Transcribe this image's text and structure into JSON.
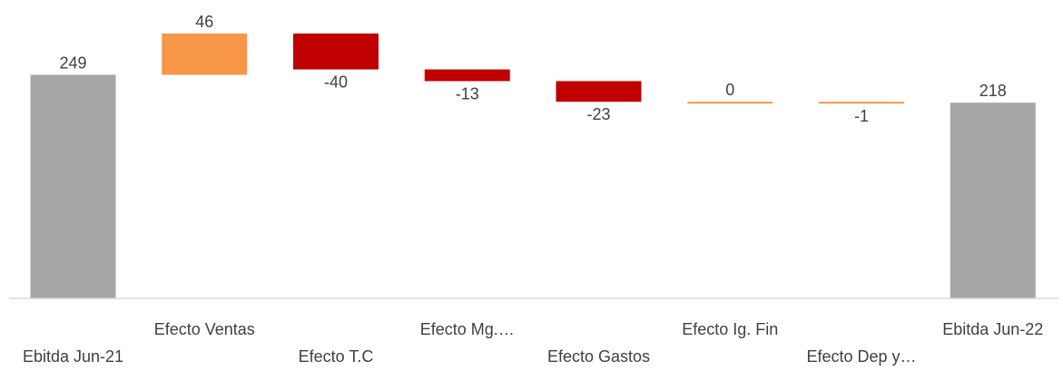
{
  "chart_data": {
    "type": "bar",
    "subtype": "waterfall",
    "title": "",
    "xlabel": "",
    "ylabel": "",
    "grid": false,
    "legend": "none",
    "ylim": [
      0,
      295
    ],
    "categories": [
      "Ebitda Jun-21",
      "Efecto Ventas",
      "Efecto T.C",
      "Efecto Mg.…",
      "Efecto Gastos",
      "Efecto Ig. Fin",
      "Efecto Dep y…",
      "Ebitda Jun-22"
    ],
    "values": [
      249,
      46,
      -40,
      -13,
      -23,
      0,
      -1,
      218
    ],
    "value_labels": [
      "249",
      "46",
      "-40",
      "-13",
      "-23",
      "0",
      "-1",
      "218"
    ],
    "bar_kinds": [
      "total",
      "increase",
      "decrease",
      "decrease",
      "decrease",
      "increase",
      "decrease",
      "total"
    ],
    "colors": {
      "total": "#a6a6a6",
      "increase": "#f79646",
      "decrease": "#c00000",
      "small_change": "#f79646",
      "axis": "#d9d9d9",
      "text": "#404040"
    }
  }
}
